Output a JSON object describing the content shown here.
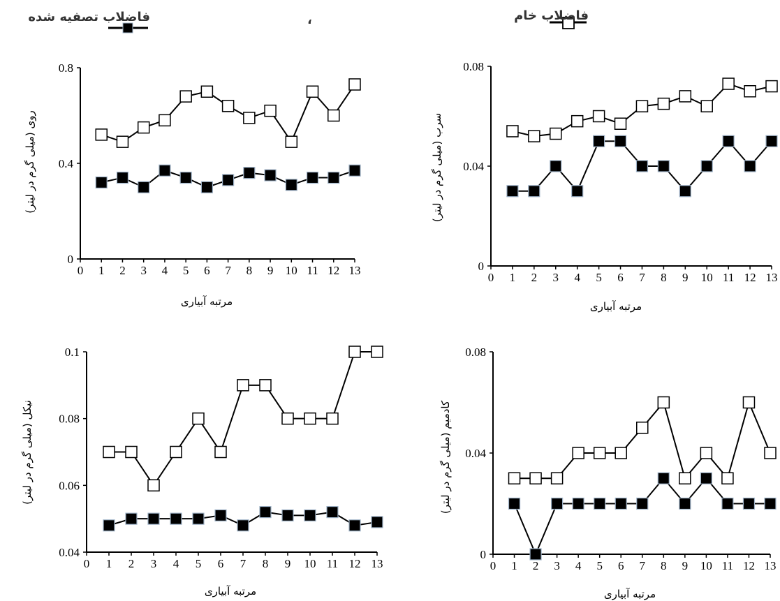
{
  "legend": {
    "raw_label": "فاضلاب خام",
    "treated_label": "فاضلاب تصفیه شده",
    "stray_mark": "،"
  },
  "chart_data": [
    {
      "id": "zinc",
      "type": "line",
      "title": "",
      "xlabel": "مرتبه آبیاری",
      "ylabel": "روی (میلی گرم در لیتر)",
      "x": [
        1,
        2,
        3,
        4,
        5,
        6,
        7,
        8,
        9,
        10,
        11,
        12,
        13
      ],
      "xticks": [
        0,
        1,
        2,
        3,
        4,
        5,
        6,
        7,
        8,
        9,
        10,
        11,
        12,
        13
      ],
      "xlim": [
        0,
        13
      ],
      "ylim": [
        0,
        0.8
      ],
      "yticks": [
        0,
        0.4,
        0.8
      ],
      "ytick_labels": [
        "0",
        "0.4",
        "0.8"
      ],
      "series": [
        {
          "name": "فاضلاب خام",
          "marker": "hollow-square",
          "values": [
            0.52,
            0.49,
            0.55,
            0.58,
            0.68,
            0.7,
            0.64,
            0.59,
            0.62,
            0.49,
            0.7,
            0.6,
            0.73
          ]
        },
        {
          "name": "فاضلاب تصفیه شده",
          "marker": "filled-square",
          "values": [
            0.32,
            0.34,
            0.3,
            0.37,
            0.34,
            0.3,
            0.33,
            0.36,
            0.35,
            0.31,
            0.34,
            0.34,
            0.37
          ]
        }
      ]
    },
    {
      "id": "lead",
      "type": "line",
      "title": "",
      "xlabel": "مرتبه آبیاری",
      "ylabel": "سرب (میلی گرم در لیتر)",
      "x": [
        1,
        2,
        3,
        4,
        5,
        6,
        7,
        8,
        9,
        10,
        11,
        12,
        13
      ],
      "xticks": [
        0,
        1,
        2,
        3,
        4,
        5,
        6,
        7,
        8,
        9,
        10,
        11,
        12,
        13
      ],
      "xlim": [
        0,
        13
      ],
      "ylim": [
        0,
        0.08
      ],
      "yticks": [
        0,
        0.04,
        0.08
      ],
      "ytick_labels": [
        "0",
        "0.04",
        "0.08"
      ],
      "series": [
        {
          "name": "فاضلاب خام",
          "marker": "hollow-square",
          "values": [
            0.054,
            0.052,
            0.053,
            0.058,
            0.06,
            0.057,
            0.064,
            0.065,
            0.068,
            0.064,
            0.073,
            0.07,
            0.072
          ]
        },
        {
          "name": "فاضلاب تصفیه شده",
          "marker": "filled-square",
          "values": [
            0.03,
            0.03,
            0.04,
            0.03,
            0.05,
            0.05,
            0.04,
            0.04,
            0.03,
            0.04,
            0.05,
            0.04,
            0.05
          ]
        }
      ]
    },
    {
      "id": "nickel",
      "type": "line",
      "title": "",
      "xlabel": "مرتبه آبیاری",
      "ylabel": "نیکل (میلی گرم در لیتر)",
      "x": [
        1,
        2,
        3,
        4,
        5,
        6,
        7,
        8,
        9,
        10,
        11,
        12,
        13
      ],
      "xticks": [
        0,
        1,
        2,
        3,
        4,
        5,
        6,
        7,
        8,
        9,
        10,
        11,
        12,
        13
      ],
      "xlim": [
        0,
        13
      ],
      "ylim": [
        0.04,
        0.1
      ],
      "yticks": [
        0.04,
        0.06,
        0.08,
        0.1
      ],
      "ytick_labels": [
        "0.04",
        "0.06",
        "0.08",
        "0.1"
      ],
      "series": [
        {
          "name": "فاضلاب خام",
          "marker": "hollow-square",
          "values": [
            0.07,
            0.07,
            0.06,
            0.07,
            0.08,
            0.07,
            0.09,
            0.09,
            0.08,
            0.08,
            0.08,
            0.1,
            0.1
          ]
        },
        {
          "name": "فاضلاب تصفیه شده",
          "marker": "filled-square",
          "values": [
            0.048,
            0.05,
            0.05,
            0.05,
            0.05,
            0.051,
            0.048,
            0.052,
            0.051,
            0.051,
            0.052,
            0.048,
            0.049
          ]
        }
      ]
    },
    {
      "id": "cadmium",
      "type": "line",
      "title": "",
      "xlabel": "مرتبه آبیاری",
      "ylabel": "کادمیم (میلی گرم در لیتر)",
      "x": [
        1,
        2,
        3,
        4,
        5,
        6,
        7,
        8,
        9,
        10,
        11,
        12,
        13
      ],
      "xticks": [
        0,
        1,
        2,
        3,
        4,
        5,
        6,
        7,
        8,
        9,
        10,
        11,
        12,
        13
      ],
      "xlim": [
        0,
        13
      ],
      "ylim": [
        0,
        0.08
      ],
      "yticks": [
        0,
        0.04,
        0.08
      ],
      "ytick_labels": [
        "0",
        "0.04",
        "0.08"
      ],
      "series": [
        {
          "name": "فاضلاب خام",
          "marker": "hollow-square",
          "values": [
            0.03,
            0.03,
            0.03,
            0.04,
            0.04,
            0.04,
            0.05,
            0.06,
            0.03,
            0.04,
            0.03,
            0.06,
            0.04
          ]
        },
        {
          "name": "فاضلاب تصفیه شده",
          "marker": "filled-square",
          "values": [
            0.02,
            0.0,
            0.02,
            0.02,
            0.02,
            0.02,
            0.02,
            0.03,
            0.02,
            0.03,
            0.02,
            0.02,
            0.02
          ]
        }
      ]
    }
  ]
}
